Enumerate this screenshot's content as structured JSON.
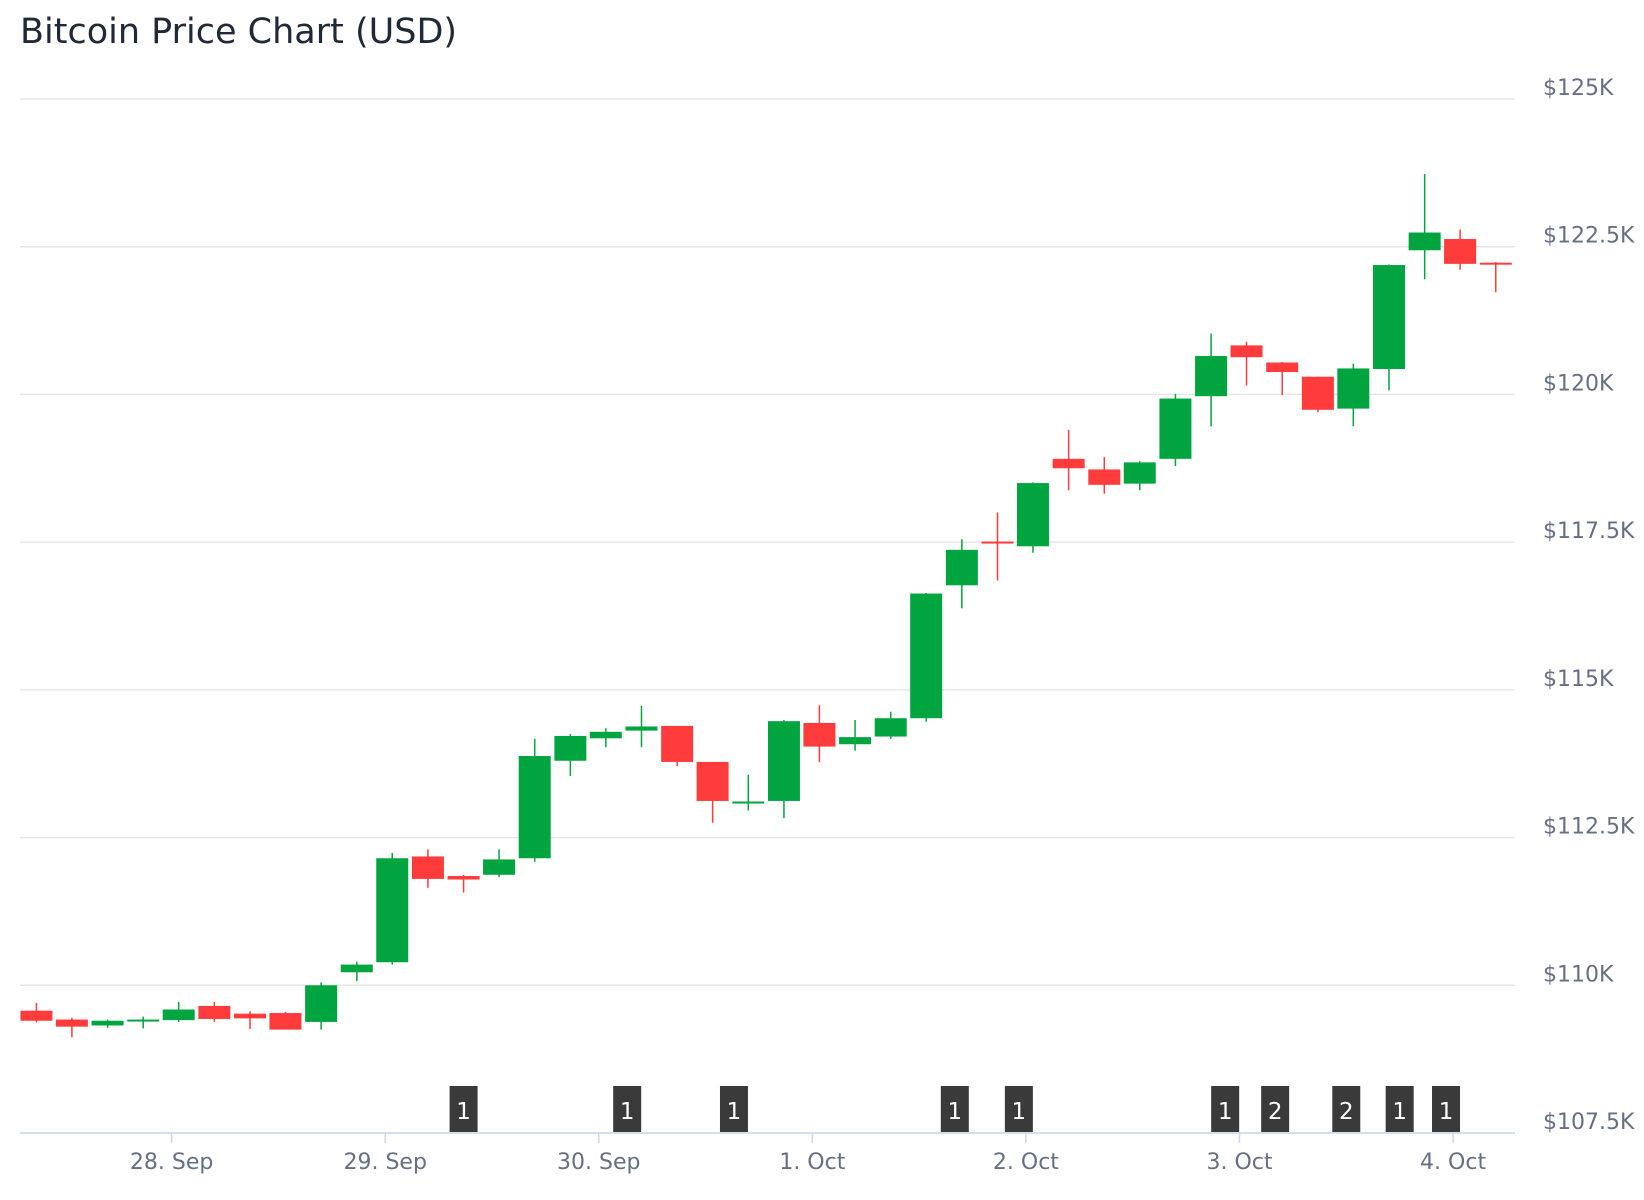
{
  "chart_data": {
    "type": "candlestick",
    "title": "Bitcoin Price Chart (USD)",
    "colors": {
      "up": "#00a540",
      "down": "#ff3b3b",
      "flag": "#3a3a3a"
    },
    "ylim": [
      107500,
      125000
    ],
    "y_ticks": [
      {
        "value": 125000,
        "label": "$125K"
      },
      {
        "value": 122500,
        "label": "$122.5K"
      },
      {
        "value": 120000,
        "label": "$120K"
      },
      {
        "value": 117500,
        "label": "$117.5K"
      },
      {
        "value": 115000,
        "label": "$115K"
      },
      {
        "value": 112500,
        "label": "$112.5K"
      },
      {
        "value": 110000,
        "label": "$110K"
      },
      {
        "value": 107500,
        "label": "$107.5K"
      }
    ],
    "x_unit": "days after 28 Sep 00:00",
    "xlim": [
      -0.71,
      6.29
    ],
    "x_ticks": [
      {
        "value": 0,
        "label": "28. Sep"
      },
      {
        "value": 1,
        "label": "29. Sep"
      },
      {
        "value": 2,
        "label": "30. Sep"
      },
      {
        "value": 3,
        "label": "1. Oct"
      },
      {
        "value": 4,
        "label": "2. Oct"
      },
      {
        "value": 5,
        "label": "3. Oct"
      },
      {
        "value": 6,
        "label": "4. Oct"
      }
    ],
    "candles": [
      {
        "t": -0.633,
        "o": 109570,
        "h": 109700,
        "l": 109370,
        "c": 109400
      },
      {
        "t": -0.467,
        "o": 109420,
        "h": 109450,
        "l": 109120,
        "c": 109300
      },
      {
        "t": -0.3,
        "o": 109320,
        "h": 109420,
        "l": 109280,
        "c": 109400
      },
      {
        "t": -0.133,
        "o": 109400,
        "h": 109470,
        "l": 109270,
        "c": 109420
      },
      {
        "t": 0.033,
        "o": 109410,
        "h": 109720,
        "l": 109380,
        "c": 109590
      },
      {
        "t": 0.2,
        "o": 109650,
        "h": 109720,
        "l": 109380,
        "c": 109430
      },
      {
        "t": 0.367,
        "o": 109520,
        "h": 109560,
        "l": 109260,
        "c": 109440
      },
      {
        "t": 0.533,
        "o": 109530,
        "h": 109550,
        "l": 109250,
        "c": 109250
      },
      {
        "t": 0.7,
        "o": 109380,
        "h": 110050,
        "l": 109250,
        "c": 110000
      },
      {
        "t": 0.867,
        "o": 110220,
        "h": 110400,
        "l": 110070,
        "c": 110350
      },
      {
        "t": 1.033,
        "o": 110390,
        "h": 112240,
        "l": 110350,
        "c": 112150
      },
      {
        "t": 1.2,
        "o": 112180,
        "h": 112300,
        "l": 111650,
        "c": 111800
      },
      {
        "t": 1.367,
        "o": 111850,
        "h": 111870,
        "l": 111570,
        "c": 111790
      },
      {
        "t": 1.533,
        "o": 111870,
        "h": 112300,
        "l": 111830,
        "c": 112130
      },
      {
        "t": 1.7,
        "o": 112150,
        "h": 114170,
        "l": 112090,
        "c": 113880
      },
      {
        "t": 1.867,
        "o": 113800,
        "h": 114250,
        "l": 113540,
        "c": 114220
      },
      {
        "t": 2.033,
        "o": 114180,
        "h": 114350,
        "l": 114030,
        "c": 114290
      },
      {
        "t": 2.2,
        "o": 114310,
        "h": 114730,
        "l": 114030,
        "c": 114380
      },
      {
        "t": 2.367,
        "o": 114390,
        "h": 114380,
        "l": 113710,
        "c": 113780
      },
      {
        "t": 2.533,
        "o": 113780,
        "h": 113780,
        "l": 112750,
        "c": 113120
      },
      {
        "t": 2.7,
        "o": 113090,
        "h": 113560,
        "l": 112960,
        "c": 113110
      },
      {
        "t": 2.867,
        "o": 113120,
        "h": 114490,
        "l": 112830,
        "c": 114470
      },
      {
        "t": 3.033,
        "o": 114440,
        "h": 114740,
        "l": 113780,
        "c": 114040
      },
      {
        "t": 3.2,
        "o": 114080,
        "h": 114490,
        "l": 113970,
        "c": 114200
      },
      {
        "t": 3.367,
        "o": 114210,
        "h": 114630,
        "l": 114170,
        "c": 114520
      },
      {
        "t": 3.533,
        "o": 114520,
        "h": 116640,
        "l": 114460,
        "c": 116630
      },
      {
        "t": 3.7,
        "o": 116770,
        "h": 117550,
        "l": 116380,
        "c": 117370
      },
      {
        "t": 3.867,
        "o": 117510,
        "h": 118000,
        "l": 116850,
        "c": 117490
      },
      {
        "t": 4.033,
        "o": 117430,
        "h": 118510,
        "l": 117320,
        "c": 118500
      },
      {
        "t": 4.2,
        "o": 118910,
        "h": 119400,
        "l": 118380,
        "c": 118750
      },
      {
        "t": 4.367,
        "o": 118730,
        "h": 118940,
        "l": 118320,
        "c": 118470
      },
      {
        "t": 4.533,
        "o": 118490,
        "h": 118870,
        "l": 118380,
        "c": 118850
      },
      {
        "t": 4.7,
        "o": 118910,
        "h": 120010,
        "l": 118790,
        "c": 119930
      },
      {
        "t": 4.867,
        "o": 119970,
        "h": 121030,
        "l": 119460,
        "c": 120650
      },
      {
        "t": 5.033,
        "o": 120830,
        "h": 120890,
        "l": 120150,
        "c": 120630
      },
      {
        "t": 5.2,
        "o": 120540,
        "h": 120550,
        "l": 119990,
        "c": 120380
      },
      {
        "t": 5.367,
        "o": 120300,
        "h": 120300,
        "l": 119700,
        "c": 119740
      },
      {
        "t": 5.533,
        "o": 119760,
        "h": 120520,
        "l": 119460,
        "c": 120440
      },
      {
        "t": 5.7,
        "o": 120430,
        "h": 122200,
        "l": 120070,
        "c": 122190
      },
      {
        "t": 5.867,
        "o": 122440,
        "h": 123730,
        "l": 121950,
        "c": 122740
      },
      {
        "t": 6.033,
        "o": 122630,
        "h": 122790,
        "l": 122110,
        "c": 122210
      },
      {
        "t": 6.2,
        "o": 122230,
        "h": 122240,
        "l": 121730,
        "c": 122220
      }
    ],
    "flags": [
      {
        "t": 1.367,
        "label": "1"
      },
      {
        "t": 2.133,
        "label": "1"
      },
      {
        "t": 2.633,
        "label": "1"
      },
      {
        "t": 3.667,
        "label": "1"
      },
      {
        "t": 3.967,
        "label": "1"
      },
      {
        "t": 4.933,
        "label": "1"
      },
      {
        "t": 5.167,
        "label": "2"
      },
      {
        "t": 5.5,
        "label": "2"
      },
      {
        "t": 5.75,
        "label": "1"
      },
      {
        "t": 5.967,
        "label": "1"
      }
    ]
  }
}
